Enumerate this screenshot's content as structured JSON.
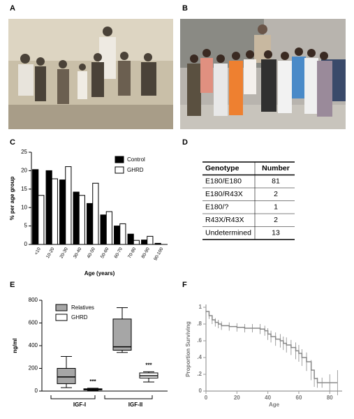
{
  "panels": [
    "A",
    "B",
    "C",
    "D",
    "E",
    "F"
  ],
  "chart_data": [
    {
      "type": "bar",
      "ylabel": "% per age group",
      "xlabel": "Age (years)",
      "categories": [
        "<10",
        "10-20",
        "20-30",
        "30-40",
        "40-50",
        "50-60",
        "60-70",
        "70-80",
        "80-90",
        "90-100"
      ],
      "series": [
        {
          "name": "Control",
          "color": "#000000",
          "values": [
            20.3,
            20,
            17.5,
            14.2,
            11.1,
            8,
            5,
            2.8,
            1.2,
            0.3
          ]
        },
        {
          "name": "GHRD",
          "color": "#ffffff",
          "values": [
            13.3,
            17.8,
            21.1,
            13.3,
            16.6,
            8.9,
            5.6,
            1.1,
            2.2,
            0
          ]
        }
      ],
      "ylim": [
        0,
        25
      ],
      "yticks": [
        0,
        5,
        10,
        15,
        20,
        25
      ],
      "legend": "upper right"
    },
    {
      "type": "box",
      "ylabel": "ng/ml",
      "categories": [
        "IGF-I",
        "IGF-II"
      ],
      "series": [
        {
          "name": "Relatives",
          "color": "#a6a6a6",
          "boxes": [
            {
              "min": 30,
              "q1": 65,
              "median": 125,
              "q3": 200,
              "max": 305
            },
            {
              "min": 340,
              "q1": 360,
              "median": 390,
              "q3": 635,
              "max": 735
            }
          ]
        },
        {
          "name": "GHRD",
          "color": "#ffffff",
          "boxes": [
            {
              "min": 5,
              "q1": 10,
              "median": 15,
              "q3": 20,
              "max": 25
            },
            {
              "min": 80,
              "q1": 115,
              "median": 135,
              "q3": 160,
              "max": 170
            }
          ]
        }
      ],
      "annotations": [
        "***",
        "***"
      ],
      "ylim": [
        0,
        800
      ],
      "yticks": [
        0,
        200,
        400,
        600,
        800
      ],
      "legend": "upper left"
    },
    {
      "type": "step",
      "ylabel": "Proportion Surviving",
      "xlabel": "Age",
      "x": [
        0,
        2,
        4,
        6,
        8,
        10,
        15,
        20,
        25,
        30,
        35,
        38,
        40,
        42,
        45,
        48,
        50,
        52,
        55,
        58,
        60,
        62,
        65,
        68,
        70,
        72,
        75,
        80,
        85
      ],
      "y": [
        0.95,
        0.9,
        0.85,
        0.82,
        0.8,
        0.78,
        0.77,
        0.76,
        0.75,
        0.75,
        0.74,
        0.72,
        0.68,
        0.65,
        0.62,
        0.6,
        0.57,
        0.55,
        0.52,
        0.48,
        0.45,
        0.4,
        0.35,
        0.25,
        0.15,
        0.1,
        0.1,
        0.1,
        0.1
      ],
      "errors": [
        0.02,
        0.04,
        0.05,
        0.05,
        0.05,
        0.05,
        0.05,
        0.05,
        0.05,
        0.05,
        0.06,
        0.06,
        0.07,
        0.07,
        0.08,
        0.08,
        0.08,
        0.09,
        0.09,
        0.1,
        0.1,
        0.1,
        0.11,
        0.12,
        0.1,
        0.06,
        0.06,
        0.1,
        0.15
      ],
      "color": "#888888",
      "xlim": [
        0,
        88
      ],
      "xticks": [
        0,
        20,
        40,
        60,
        80
      ],
      "ylim": [
        0,
        1
      ],
      "yticks": [
        0,
        {
          "value": 0.2,
          "label": ".2"
        },
        {
          "value": 0.4,
          "label": ".4"
        },
        {
          "value": 0.6,
          "label": ".6"
        },
        {
          "value": 0.8,
          "label": ".8"
        },
        1
      ]
    }
  ],
  "table": {
    "header": [
      "Genotype",
      "Number"
    ],
    "rows": [
      [
        "E180/E180",
        "81"
      ],
      [
        "E180/R43X",
        "2"
      ],
      [
        "E180/?",
        "1"
      ],
      [
        "R43X/R43X",
        "2"
      ],
      [
        "Undetermined",
        "13"
      ]
    ]
  }
}
